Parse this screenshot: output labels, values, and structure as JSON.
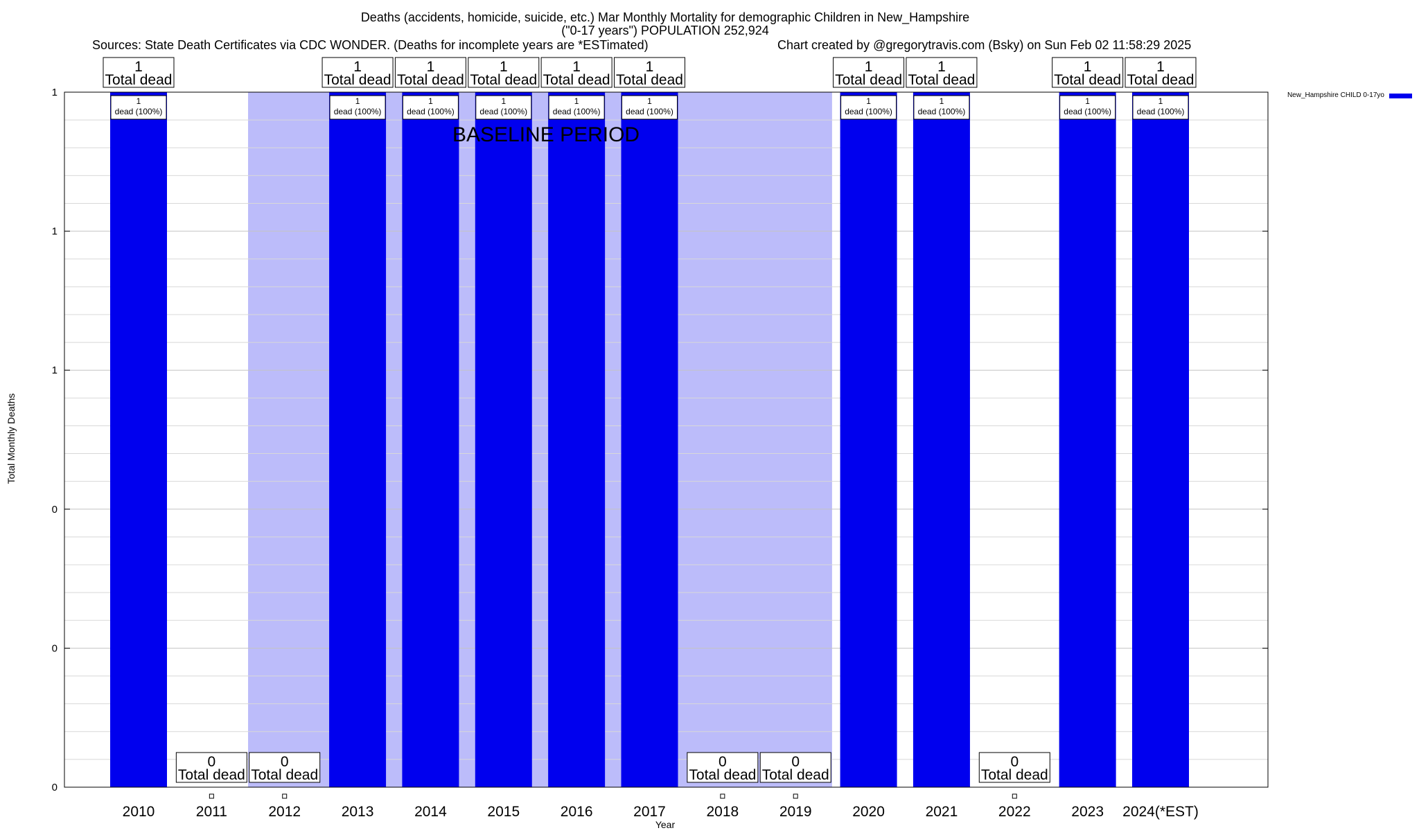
{
  "chart_data": {
    "type": "bar",
    "title_lines": [
      "Deaths (accidents, homicide, suicide, etc.) Mar Monthly Mortality for demographic Children in New_Hampshire",
      "(\"0-17 years\") POPULATION 252,924"
    ],
    "sources": "Sources: State Death Certificates via CDC WONDER. (Deaths for incomplete years are *ESTimated)",
    "credit": "Chart created by @gregorytravis.com (Bsky) on Sun Feb 02 11:58:29 2025",
    "xlabel": "Year",
    "ylabel": "Total Monthly Deaths",
    "categories": [
      "2010",
      "2011",
      "2012",
      "2013",
      "2014",
      "2015",
      "2016",
      "2017",
      "2018",
      "2019",
      "2020",
      "2021",
      "2022",
      "2023",
      "2024(*EST)"
    ],
    "series": [
      {
        "name": "New_Hampshire CHILD 0-17yo",
        "color": "#0000ee",
        "values": [
          1,
          0,
          0,
          1,
          1,
          1,
          1,
          1,
          0,
          0,
          1,
          1,
          0,
          1,
          1
        ]
      }
    ],
    "ylim": [
      0,
      1
    ],
    "y_tick_values": [
      0,
      0.2,
      0.4,
      0.6,
      0.8,
      1
    ],
    "y_tick_labels": [
      "0",
      "0",
      "0",
      "1",
      "1",
      "1"
    ],
    "total_label_text": "Total dead",
    "bar_label_suffix": "dead (100%)",
    "baseline": {
      "label": "BASELINE PERIOD",
      "start": "2012",
      "end": "2019",
      "color": "#bcbcfa"
    },
    "grid": true,
    "legend_position": "top-right"
  }
}
